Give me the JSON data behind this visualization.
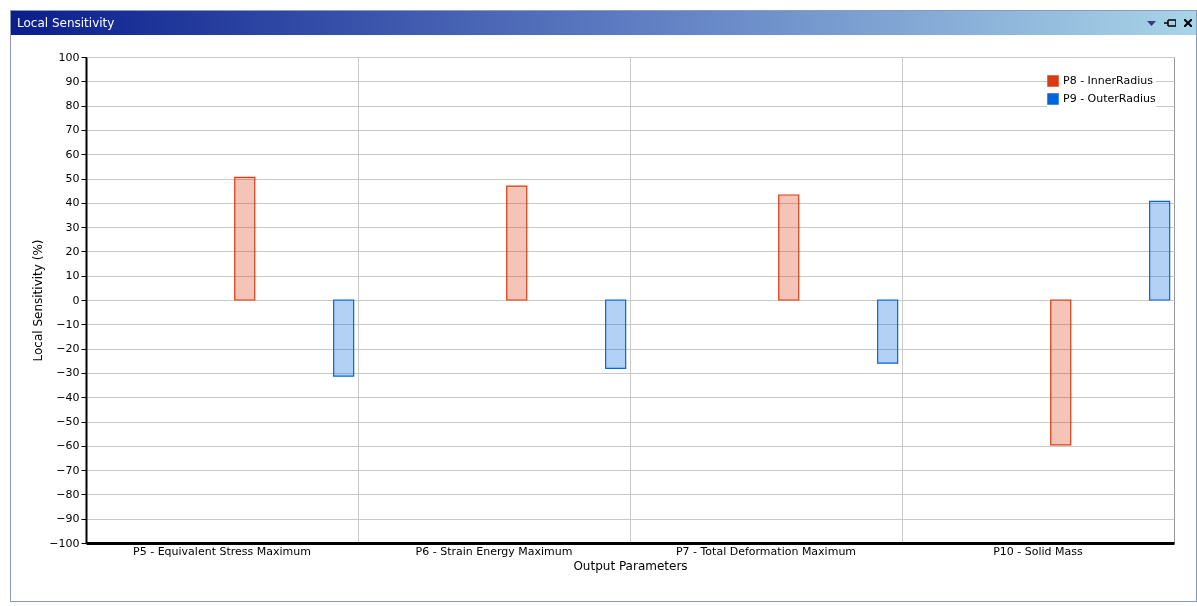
{
  "chart_data": {
    "type": "bar",
    "title": "Local Sensitivity",
    "xlabel": "Output Parameters",
    "ylabel": "Local Sensitivity (%)",
    "categories": [
      "P5 - Equivalent Stress Maximum",
      "P6 - Strain Energy Maximum",
      "P7 - Total Deformation Maximum",
      "P10 - Solid Mass"
    ],
    "series": [
      {
        "name": "P8 - InnerRadius",
        "color": "#dc3a10",
        "values": [
          50.5,
          46.9,
          43.2,
          -59.6
        ]
      },
      {
        "name": "P9 - OuterRadius",
        "color": "#0066dd",
        "values": [
          -31.3,
          -28.1,
          -26.0,
          40.6
        ]
      }
    ],
    "ylim": [
      -100,
      100
    ],
    "yticks": [
      -100,
      -90,
      -80,
      -70,
      -60,
      -50,
      -40,
      -30,
      -20,
      -10,
      0,
      10,
      20,
      30,
      40,
      50,
      60,
      70,
      80,
      90,
      100
    ],
    "grid": true,
    "legend": "top right"
  }
}
